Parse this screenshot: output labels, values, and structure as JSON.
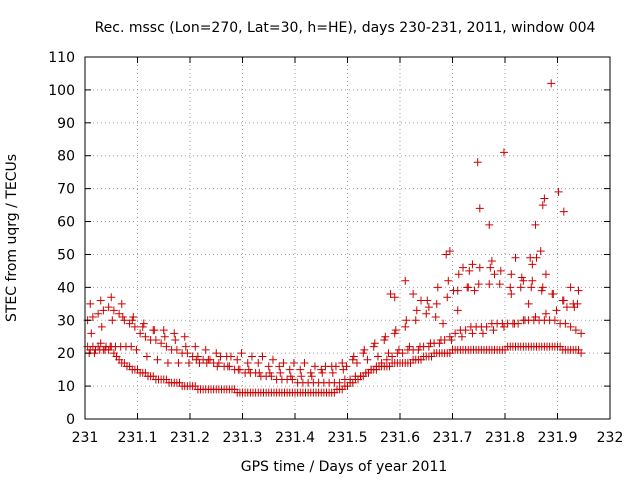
{
  "chart_data": {
    "type": "scatter",
    "title": "Rec. mssc (Lon=270, Lat=30, h=HE), days 230-231, 2011, window 004",
    "xlabel": "GPS time / Days of year 2011",
    "ylabel": "STEC from uqrg / TECUs",
    "xlim": [
      231,
      232
    ],
    "ylim": [
      0,
      110
    ],
    "xticks": [
      "231",
      "231.1",
      "231.2",
      "231.3",
      "231.4",
      "231.5",
      "231.6",
      "231.7",
      "231.8",
      "231.9",
      "232"
    ],
    "yticks": [
      "0",
      "10",
      "20",
      "30",
      "40",
      "50",
      "60",
      "70",
      "80",
      "90",
      "100",
      "110"
    ],
    "grid": true,
    "marker": "+",
    "color": "#cc0000",
    "series": [
      {
        "name": "STEC",
        "x": [
          231.005,
          231.01,
          231.015,
          231.02,
          231.025,
          231.03,
          231.035,
          231.04,
          231.045,
          231.05,
          231.055,
          231.06,
          231.065,
          231.07,
          231.075,
          231.08,
          231.085,
          231.09,
          231.095,
          231.1,
          231.105,
          231.11,
          231.115,
          231.12,
          231.125,
          231.13,
          231.135,
          231.14,
          231.145,
          231.15,
          231.155,
          231.16,
          231.165,
          231.17,
          231.175,
          231.18,
          231.185,
          231.19,
          231.195,
          231.2,
          231.205,
          231.21,
          231.215,
          231.22,
          231.225,
          231.23,
          231.235,
          231.24,
          231.245,
          231.25,
          231.255,
          231.26,
          231.265,
          231.27,
          231.275,
          231.28,
          231.285,
          231.29,
          231.295,
          231.3,
          231.305,
          231.31,
          231.315,
          231.32,
          231.325,
          231.33,
          231.335,
          231.34,
          231.345,
          231.35,
          231.355,
          231.36,
          231.365,
          231.37,
          231.375,
          231.38,
          231.385,
          231.39,
          231.395,
          231.4,
          231.405,
          231.41,
          231.415,
          231.42,
          231.425,
          231.43,
          231.435,
          231.44,
          231.445,
          231.45,
          231.455,
          231.46,
          231.465,
          231.47,
          231.475,
          231.48,
          231.485,
          231.49,
          231.495,
          231.5,
          231.505,
          231.51,
          231.515,
          231.52,
          231.525,
          231.53,
          231.535,
          231.54,
          231.545,
          231.55,
          231.555,
          231.56,
          231.565,
          231.57,
          231.575,
          231.58,
          231.585,
          231.59,
          231.595,
          231.6,
          231.605,
          231.61,
          231.615,
          231.62,
          231.625,
          231.63,
          231.635,
          231.64,
          231.645,
          231.65,
          231.655,
          231.66,
          231.665,
          231.67,
          231.675,
          231.68,
          231.685,
          231.69,
          231.695,
          231.7,
          231.705,
          231.71,
          231.715,
          231.72,
          231.725,
          231.73,
          231.735,
          231.74,
          231.745,
          231.75,
          231.755,
          231.76,
          231.765,
          231.77,
          231.775,
          231.78,
          231.785,
          231.79,
          231.795,
          231.8,
          231.805,
          231.81,
          231.815,
          231.82,
          231.825,
          231.83,
          231.835,
          231.84,
          231.845,
          231.85,
          231.855,
          231.86,
          231.865,
          231.87,
          231.875,
          231.88,
          231.885,
          231.89,
          231.895,
          231.9,
          231.905,
          231.91,
          231.915,
          231.92,
          231.925,
          231.93,
          231.935,
          231.94,
          231.945,
          231.005,
          231.015,
          231.025,
          231.035,
          231.045,
          231.055,
          231.065,
          231.075,
          231.085,
          231.095,
          231.105,
          231.115,
          231.125,
          231.135,
          231.145,
          231.155,
          231.165,
          231.175,
          231.185,
          231.195,
          231.205,
          231.215,
          231.225,
          231.235,
          231.245,
          231.255,
          231.265,
          231.275,
          231.285,
          231.295,
          231.305,
          231.315,
          231.325,
          231.335,
          231.345,
          231.355,
          231.365,
          231.375,
          231.385,
          231.395,
          231.405,
          231.415,
          231.425,
          231.435,
          231.445,
          231.455,
          231.465,
          231.475,
          231.485,
          231.495,
          231.505,
          231.515,
          231.525,
          231.535,
          231.545,
          231.555,
          231.565,
          231.575,
          231.585,
          231.595,
          231.605,
          231.615,
          231.625,
          231.635,
          231.645,
          231.655,
          231.665,
          231.675,
          231.685,
          231.695,
          231.705,
          231.715,
          231.725,
          231.735,
          231.745,
          231.755,
          231.765,
          231.775,
          231.785,
          231.795,
          231.805,
          231.815,
          231.825,
          231.835,
          231.845,
          231.855,
          231.865,
          231.875,
          231.885,
          231.895,
          231.905,
          231.915,
          231.925,
          231.935,
          231.945,
          231.01,
          231.03,
          231.05,
          231.07,
          231.09,
          231.11,
          231.13,
          231.15,
          231.17,
          231.19,
          231.21,
          231.23,
          231.25,
          231.27,
          231.29,
          231.31,
          231.33,
          231.35,
          231.37,
          231.39,
          231.41,
          231.43,
          231.45,
          231.47,
          231.49,
          231.51,
          231.53,
          231.55,
          231.57,
          231.59,
          231.61,
          231.63,
          231.65,
          231.67,
          231.69,
          231.71,
          231.73,
          231.75,
          231.77,
          231.79,
          231.81,
          231.83,
          231.85,
          231.87,
          231.89,
          231.91,
          231.93,
          231.012,
          231.032,
          231.052,
          231.072,
          231.092,
          231.112,
          231.132,
          231.152,
          231.172,
          231.192,
          231.212,
          231.232,
          231.252,
          231.272,
          231.292,
          231.312,
          231.332,
          231.352,
          231.372,
          231.392,
          231.412,
          231.432,
          231.452,
          231.472,
          231.492,
          231.512,
          231.532,
          231.552,
          231.572,
          231.592,
          231.612,
          231.632,
          231.652,
          231.672,
          231.692,
          231.712,
          231.732,
          231.752,
          231.772,
          231.792,
          231.812,
          231.832,
          231.852,
          231.872,
          231.892,
          231.912,
          231.932,
          231.008,
          231.018,
          231.028,
          231.038,
          231.048,
          231.058,
          231.068,
          231.078,
          231.088,
          231.098,
          231.118,
          231.138,
          231.158,
          231.178,
          231.198,
          231.218,
          231.238,
          231.258,
          231.278,
          231.298,
          231.318,
          231.338,
          231.358,
          231.378,
          231.398,
          231.418,
          231.438,
          231.458,
          231.478,
          231.498,
          231.518,
          231.538,
          231.558,
          231.578,
          231.598,
          231.618,
          231.638,
          231.658,
          231.678,
          231.698,
          231.718,
          231.738,
          231.758,
          231.778,
          231.798,
          231.818,
          231.838,
          231.858,
          231.878,
          231.898,
          231.918,
          231.938,
          231.748,
          231.752,
          231.798,
          231.888,
          231.902,
          231.875,
          231.872,
          231.912,
          231.858,
          231.868,
          231.86,
          231.695,
          231.688,
          231.72,
          231.738,
          231.742,
          231.77,
          231.775,
          231.82,
          231.835,
          231.848,
          231.852,
          231.878,
          231.925,
          231.94,
          231.61,
          231.625,
          231.64,
          231.655,
          231.668,
          231.682,
          231.582,
          231.59,
          231.702,
          231.71,
          231.728,
          231.78,
          231.812,
          231.845
        ],
        "y": [
          22,
          21,
          22,
          21,
          22,
          23,
          21,
          22,
          21,
          22,
          20,
          19,
          18,
          17,
          17,
          16,
          16,
          15,
          15,
          15,
          14,
          14,
          14,
          13,
          13,
          13,
          12,
          12,
          12,
          12,
          12,
          11,
          11,
          11,
          11,
          11,
          10,
          10,
          10,
          10,
          10,
          10,
          9,
          9,
          9,
          9,
          9,
          9,
          9,
          9,
          9,
          9,
          9,
          9,
          9,
          9,
          9,
          8,
          8,
          8,
          8,
          8,
          8,
          8,
          8,
          8,
          8,
          8,
          8,
          8,
          8,
          8,
          8,
          8,
          8,
          8,
          8,
          8,
          8,
          8,
          8,
          8,
          8,
          8,
          8,
          8,
          8,
          8,
          8,
          8,
          8,
          8,
          8,
          8,
          8,
          9,
          9,
          9,
          10,
          10,
          11,
          11,
          12,
          12,
          13,
          13,
          14,
          14,
          15,
          15,
          15,
          16,
          16,
          16,
          16,
          16,
          17,
          17,
          17,
          17,
          17,
          17,
          17,
          17,
          18,
          18,
          18,
          18,
          19,
          19,
          19,
          19,
          20,
          20,
          20,
          20,
          20,
          20,
          20,
          21,
          21,
          21,
          21,
          21,
          21,
          21,
          21,
          21,
          21,
          21,
          21,
          21,
          21,
          21,
          21,
          21,
          21,
          21,
          21,
          21,
          22,
          22,
          22,
          22,
          22,
          22,
          22,
          22,
          22,
          22,
          22,
          22,
          22,
          22,
          22,
          22,
          22,
          22,
          22,
          22,
          22,
          21,
          21,
          21,
          21,
          21,
          21,
          21,
          20,
          30,
          31,
          32,
          33,
          34,
          33,
          32,
          30,
          29,
          28,
          26,
          25,
          24,
          24,
          23,
          22,
          21,
          21,
          20,
          20,
          19,
          19,
          18,
          18,
          17,
          17,
          16,
          16,
          15,
          15,
          14,
          14,
          14,
          13,
          13,
          13,
          12,
          12,
          12,
          12,
          11,
          11,
          11,
          11,
          11,
          11,
          11,
          11,
          11,
          12,
          12,
          13,
          13,
          14,
          15,
          16,
          17,
          18,
          19,
          20,
          20,
          21,
          21,
          21,
          22,
          22,
          23,
          23,
          24,
          25,
          26,
          27,
          27,
          28,
          28,
          28,
          28,
          29,
          29,
          29,
          29,
          29,
          29,
          30,
          30,
          30,
          30,
          30,
          30,
          30,
          29,
          29,
          28,
          27,
          26,
          35,
          36,
          37,
          35,
          30,
          28,
          27,
          27,
          26,
          25,
          22,
          21,
          20,
          19,
          18,
          17,
          17,
          16,
          16,
          15,
          15,
          14,
          15,
          16,
          17,
          18,
          20,
          22,
          24,
          26,
          28,
          30,
          32,
          35,
          37,
          39,
          40,
          41,
          41,
          41,
          40,
          40,
          40,
          39,
          38,
          36,
          35,
          26,
          28,
          30,
          31,
          31,
          29,
          27,
          25,
          24,
          22,
          18,
          17,
          16,
          16,
          15,
          15,
          14,
          14,
          14,
          13,
          13,
          13,
          14,
          14,
          15,
          19,
          21,
          23,
          25,
          27,
          30,
          33,
          36,
          40,
          42,
          44,
          45,
          46,
          46,
          45,
          44,
          43,
          42,
          40,
          38,
          36,
          34,
          20,
          20,
          21,
          21,
          22,
          22,
          22,
          22,
          22,
          21,
          19,
          18,
          17,
          17,
          17,
          17,
          18,
          19,
          19,
          20,
          19,
          19,
          18,
          17,
          17,
          17,
          16,
          16,
          16,
          16,
          17,
          18,
          19,
          20,
          21,
          22,
          22,
          23,
          24,
          24,
          25,
          26,
          26,
          27,
          28,
          29,
          30,
          31,
          32,
          33,
          34,
          35,
          78,
          64,
          81,
          102,
          69,
          67,
          65,
          63,
          59,
          51,
          49,
          51,
          50,
          46,
          47,
          39,
          59,
          48,
          49,
          42,
          49,
          47,
          44,
          40,
          39,
          42,
          38,
          36,
          34,
          31,
          29,
          38,
          37,
          39,
          33,
          40,
          44,
          38,
          35
        ]
      }
    ]
  }
}
